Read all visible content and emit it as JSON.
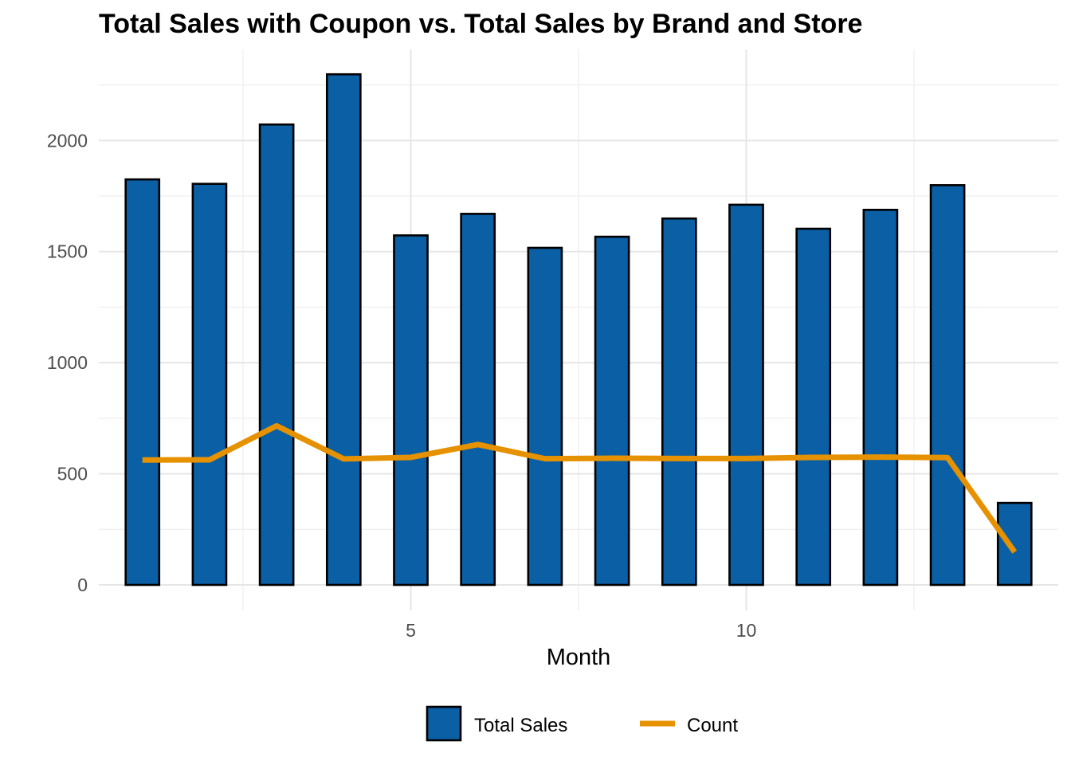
{
  "chart_data": {
    "type": "bar",
    "title": "Total Sales with Coupon vs. Total Sales by Brand and Store",
    "xlabel": "Month",
    "ylabel": "",
    "x": [
      1,
      2,
      3,
      4,
      5,
      6,
      7,
      8,
      9,
      10,
      11,
      12,
      13,
      14
    ],
    "xlim": [
      0.35,
      14.65
    ],
    "ylim": [
      0,
      2410
    ],
    "x_ticks": [
      5,
      10
    ],
    "x_minor_ticks": [
      2.5,
      7.5,
      12.5
    ],
    "y_ticks": [
      0,
      500,
      1000,
      1500,
      2000
    ],
    "y_minor_ticks": [
      250,
      750,
      1250,
      1750,
      2250
    ],
    "grid": true,
    "legend_position": "bottom",
    "series": [
      {
        "name": "Total Sales",
        "kind": "bar",
        "color": "#0b5fa5",
        "values": [
          1825,
          1805,
          2072,
          2298,
          1573,
          1670,
          1517,
          1567,
          1649,
          1711,
          1603,
          1688,
          1799,
          369
        ]
      },
      {
        "name": "Count",
        "kind": "line",
        "color": "#e69100",
        "values": [
          562,
          563,
          716,
          567,
          574,
          632,
          568,
          570,
          569,
          569,
          574,
          575,
          573,
          148
        ]
      }
    ]
  }
}
